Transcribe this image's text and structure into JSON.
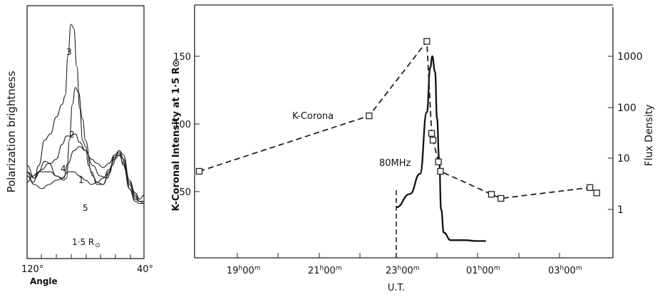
{
  "chart_data": [
    {
      "type": "line",
      "title": "",
      "xlabel": "Angle",
      "ylabel": "Polarization brightness",
      "x_ticks": [
        "120°",
        "40°"
      ],
      "xlim": [
        120,
        40
      ],
      "annotation": "1·5 R⊙",
      "grid": false,
      "legend": "inline curve numbers",
      "series": [
        {
          "name": "1",
          "x": [
            120,
            115,
            110,
            105,
            100,
            95,
            92,
            88,
            84,
            80,
            75,
            70,
            65,
            62,
            58,
            55,
            52,
            50,
            46,
            43,
            40
          ],
          "values": [
            0.28,
            0.24,
            0.22,
            0.24,
            0.26,
            0.27,
            0.34,
            0.4,
            0.42,
            0.4,
            0.33,
            0.28,
            0.27,
            0.33,
            0.38,
            0.37,
            0.3,
            0.22,
            0.16,
            0.15,
            0.15
          ]
        },
        {
          "name": "2",
          "x": [
            120,
            115,
            110,
            105,
            100,
            95,
            93,
            91,
            89,
            87,
            85,
            82,
            80,
            76,
            72,
            68,
            64,
            60,
            57,
            54,
            50,
            46,
            43,
            40
          ],
          "values": [
            0.3,
            0.27,
            0.31,
            0.34,
            0.28,
            0.26,
            0.27,
            0.45,
            0.62,
            0.7,
            0.68,
            0.55,
            0.45,
            0.3,
            0.24,
            0.24,
            0.3,
            0.38,
            0.39,
            0.33,
            0.22,
            0.17,
            0.16,
            0.16
          ]
        },
        {
          "name": "3",
          "x": [
            120,
            115,
            112,
            108,
            104,
            100,
            96,
            94,
            92,
            90,
            88,
            86,
            84,
            82,
            80,
            78,
            75,
            72,
            68,
            64,
            60,
            57,
            54,
            50,
            46,
            43,
            40
          ],
          "values": [
            0.33,
            0.27,
            0.33,
            0.45,
            0.48,
            0.56,
            0.62,
            0.66,
            0.85,
            1.0,
            0.98,
            0.8,
            0.6,
            0.45,
            0.42,
            0.33,
            0.28,
            0.25,
            0.24,
            0.29,
            0.37,
            0.4,
            0.38,
            0.26,
            0.2,
            0.17,
            0.19
          ]
        },
        {
          "name": "4",
          "x": [
            120,
            116,
            112,
            108,
            104,
            100,
            96,
            93,
            90,
            87,
            84,
            80,
            76,
            72,
            68,
            64,
            60,
            57,
            54,
            50,
            46,
            43,
            40
          ],
          "values": [
            0.3,
            0.25,
            0.3,
            0.35,
            0.34,
            0.36,
            0.43,
            0.47,
            0.47,
            0.48,
            0.44,
            0.4,
            0.36,
            0.34,
            0.32,
            0.34,
            0.38,
            0.4,
            0.36,
            0.24,
            0.18,
            0.16,
            0.16
          ]
        },
        {
          "name": "5",
          "x": [
            120,
            116,
            112,
            108,
            104,
            100,
            96,
            92,
            88,
            84,
            80,
            76,
            72,
            68,
            64,
            60,
            57,
            54,
            50,
            46,
            43,
            40
          ],
          "values": [
            0.25,
            0.28,
            0.3,
            0.3,
            0.3,
            0.28,
            0.27,
            0.3,
            0.3,
            0.28,
            0.26,
            0.24,
            0.25,
            0.27,
            0.31,
            0.36,
            0.38,
            0.34,
            0.25,
            0.19,
            0.16,
            0.15
          ]
        }
      ]
    },
    {
      "type": "line",
      "title": "",
      "xlabel": "U.T.",
      "ylabel": "K-Coronal Intensity at 1·5 R⊙",
      "y2label": "Flux Density",
      "ylim": [
        0,
        185
      ],
      "y_ticks": [
        50,
        100,
        150
      ],
      "y2_scale": "log",
      "y2_ticks": [
        1,
        10,
        100,
        1000
      ],
      "x_ticks": [
        "19h00m",
        "21h00m",
        "23h00m",
        "01h00m",
        "03h00m"
      ],
      "grid": false,
      "annotations": [
        "K-Corona",
        "80MHz"
      ],
      "series": [
        {
          "name": "K-Corona",
          "axis": "left",
          "style": "dashed with square markers",
          "x": [
            "18h10m",
            "22h20m",
            "23h45m",
            "23h52m",
            "23h54m",
            "00h02m",
            "00h05m",
            "01h20m",
            "01h34m",
            "03h45m",
            "03h55m"
          ],
          "values": [
            65,
            106,
            161,
            93,
            88,
            72,
            65,
            48,
            45,
            53,
            49
          ]
        },
        {
          "name": "80MHz",
          "axis": "right",
          "style": "solid",
          "x": [
            "23h00m",
            "23h20m",
            "23h35m",
            "23h45m",
            "23h50m",
            "23h53m",
            "23h57m",
            "00h00m",
            "00h03m",
            "00h06m",
            "00h10m",
            "00h20m",
            "00h40m",
            "01h00m",
            "01h12m"
          ],
          "values": [
            1.1,
            2.0,
            5,
            80,
            600,
            1000,
            500,
            60,
            10,
            1.0,
            0.35,
            0.25,
            0.25,
            0.24,
            0.24
          ]
        }
      ],
      "marker_line": {
        "x": "23h00m",
        "style": "dashed vertical"
      }
    }
  ],
  "left_panel": {
    "ylabel": "Polarization brightness",
    "xlabel": "Angle",
    "x_left": "120°",
    "x_right": "40°",
    "annotation_main": "1·5 R",
    "annotation_sub": "⊙",
    "curve_labels": [
      "1",
      "2",
      "3",
      "4",
      "5"
    ]
  },
  "right_panel": {
    "ylabel": "K-Coronal Intensity at 1·5 R⊙",
    "y2label": "Flux Density",
    "xlabel": "U.T.",
    "left_ticks": [
      "150",
      "100",
      "50"
    ],
    "right_ticks": [
      "1000",
      "100",
      "10",
      "1"
    ],
    "hour_ticks": [
      "19",
      "21",
      "23",
      "01",
      "03"
    ],
    "h_sup": "h",
    "min_label": "00",
    "m_sup": "m",
    "label_kcorona": "K-Corona",
    "label_80mhz": "80MHz"
  }
}
